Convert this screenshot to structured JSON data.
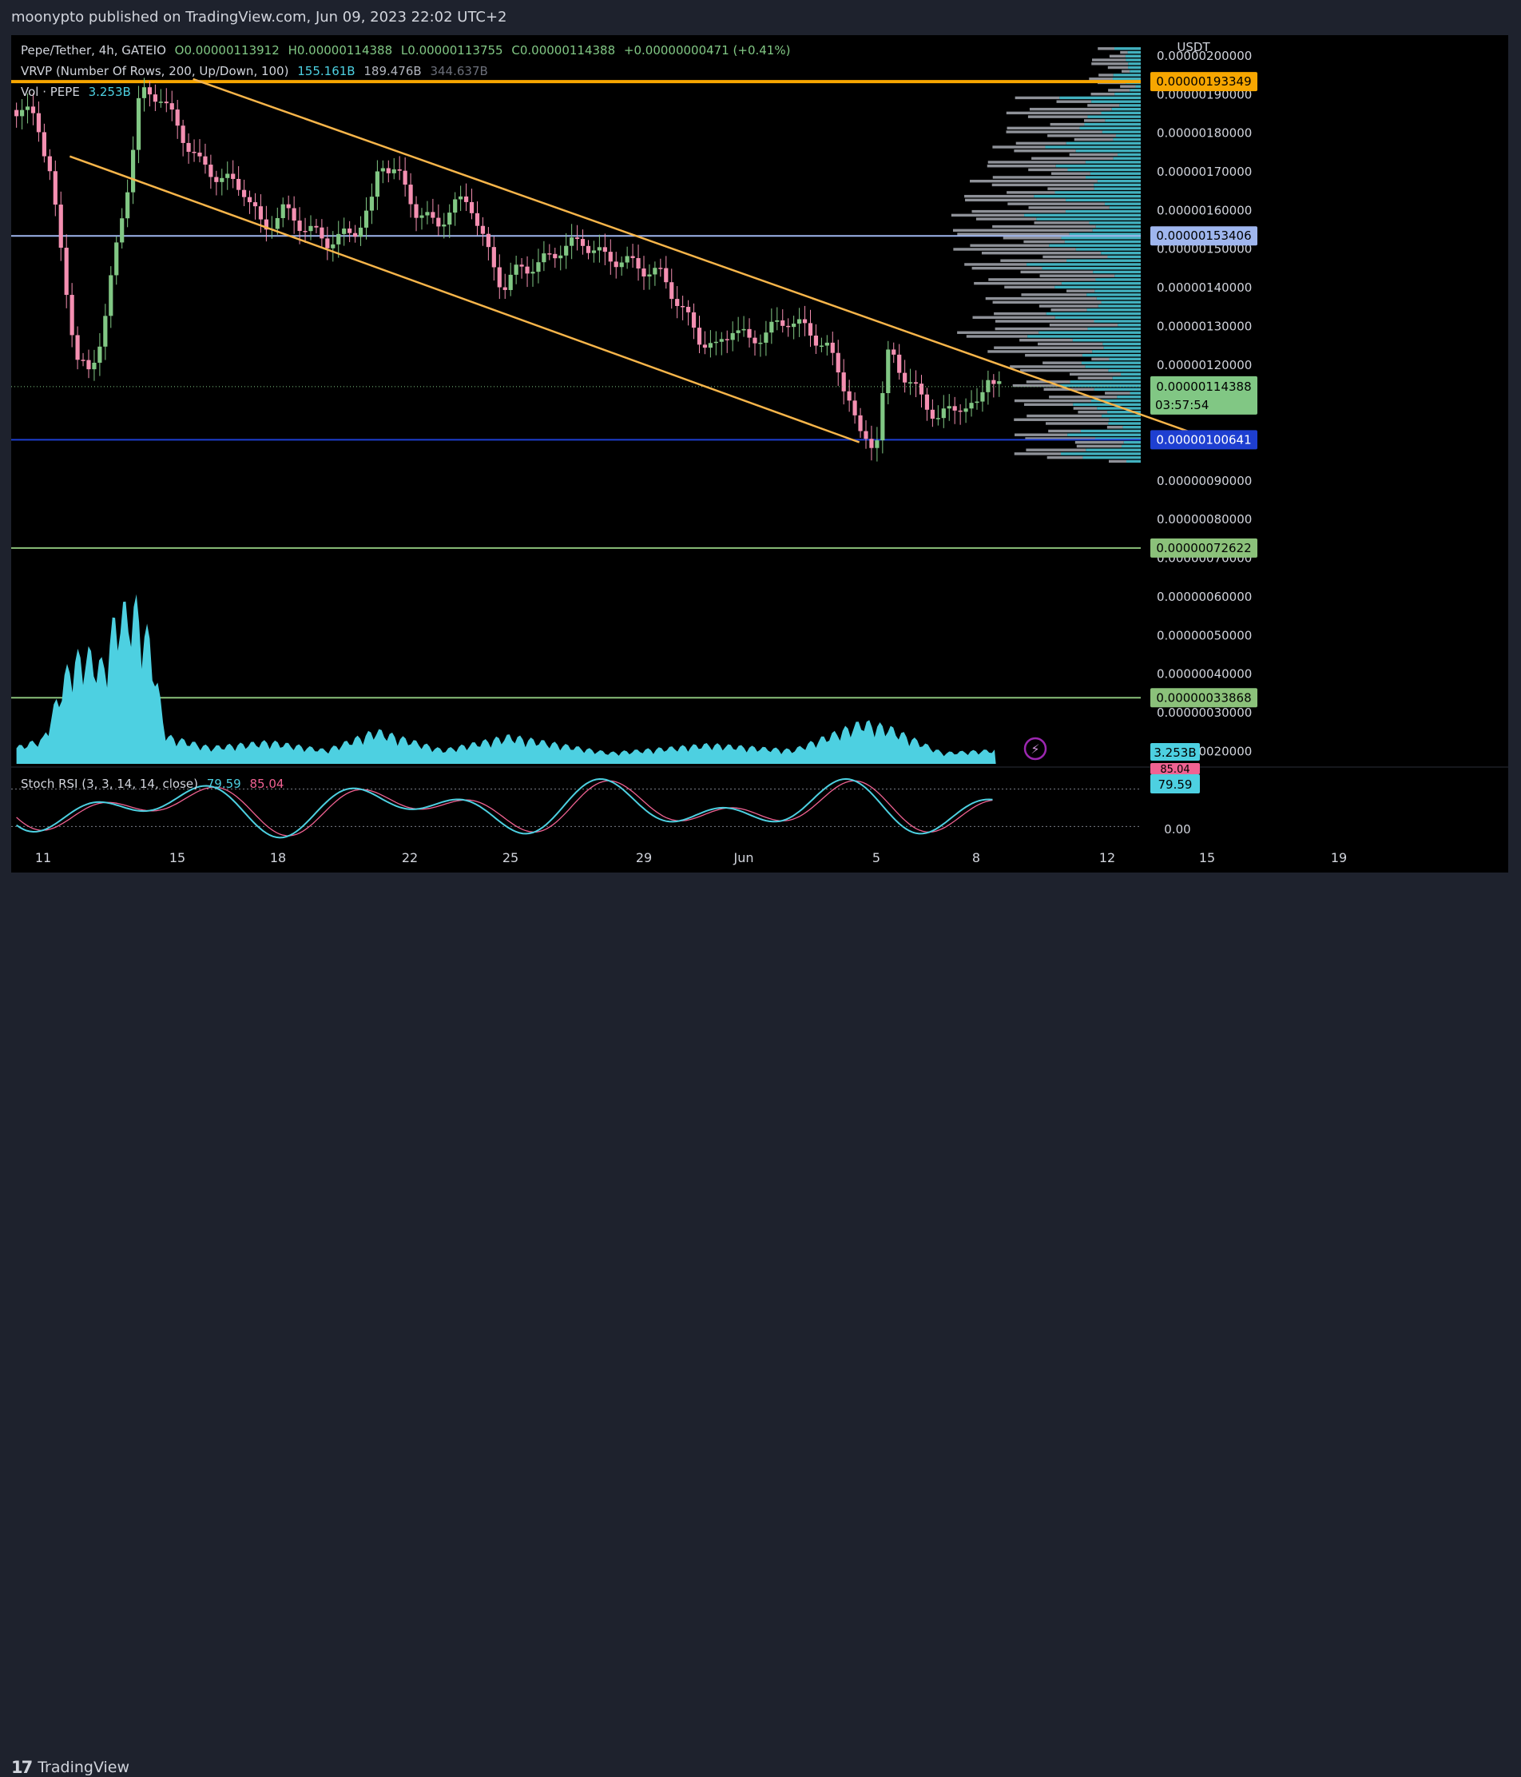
{
  "header": {
    "publisher_line": "moonypto published on TradingView.com, Jun 09, 2023 22:02 UTC+2"
  },
  "legend": {
    "symbol": "Pepe/Tether, 4h, GATEIO",
    "open": "O0.00000113912",
    "high": "H0.00000114388",
    "low": "L0.00000113755",
    "close": "C0.00000114388",
    "change": "+0.00000000471 (+0.41%)",
    "vrvp_label": "VRVP (Number Of Rows, 200, Up/Down, 100)",
    "vrvp_up": "155.161B",
    "vrvp_down": "189.476B",
    "vrvp_total": "344.637B",
    "vol_label": "Vol · PEPE",
    "vol_value": "3.253B",
    "stoch_label": "Stoch RSI (3, 3, 14, 14, close)",
    "stoch_k": "79.59",
    "stoch_d": "85.04"
  },
  "price_axis": {
    "currency": "USDT",
    "ticks": [
      "0.00000200000",
      "0.00000190000",
      "0.00000180000",
      "0.00000170000",
      "0.00000160000",
      "0.00000150000",
      "0.00000140000",
      "0.00000130000",
      "0.00000120000",
      "0.00000090000",
      "0.00000080000",
      "0.00000070000",
      "0.00000060000",
      "0.00000050000",
      "0.00000040000",
      "0.00000030000",
      "0.00000020000"
    ],
    "tick_values": [
      2.0,
      1.9,
      1.8,
      1.7,
      1.6,
      1.5,
      1.4,
      1.3,
      1.2,
      0.9,
      0.8,
      0.7,
      0.6,
      0.5,
      0.4,
      0.3,
      0.2
    ],
    "current_price": "0.00000114388",
    "countdown": "03:57:54",
    "volume_badge": "3.253B",
    "stoch_badge_k": "79.59",
    "stoch_badge_d": "85.04",
    "stoch_zero": "0.00"
  },
  "levels": [
    {
      "label": "0.00000193349",
      "value": 1.93349,
      "color": "#f7a600",
      "text_color": "#000000"
    },
    {
      "label": "0.00000153406",
      "value": 1.53406,
      "color": "#9fb6ee",
      "text_color": "#000000"
    },
    {
      "label": "0.00000100641",
      "value": 1.00641,
      "color": "#1e3fd1",
      "text_color": "#ffffff"
    },
    {
      "label": "0.00000072622",
      "value": 0.72622,
      "color": "#8bc17a",
      "text_color": "#000000"
    },
    {
      "label": "0.00000033868",
      "value": 0.33868,
      "color": "#8bc17a",
      "text_color": "#000000"
    }
  ],
  "time_axis": {
    "labels": [
      "11",
      "15",
      "18",
      "22",
      "25",
      "29",
      "Jun",
      "5",
      "8",
      "12",
      "15",
      "19"
    ]
  },
  "colors": {
    "up": "#81c784",
    "down": "#f48fb1",
    "trend": "#f7b54a",
    "volume": "#4dd0e1",
    "k_line": "#4dd0e1",
    "d_line": "#f06292"
  },
  "footer": {
    "brand": "TradingView"
  },
  "chart_data": {
    "type": "candlestick",
    "title": "Pepe/Tether, 4h, GATEIO",
    "ylabel": "USDT",
    "y_unit": "x 1e-6 USDT",
    "ylim": [
      0.1,
      2.12
    ],
    "x_range_days": [
      "May 10",
      "Jun 20"
    ],
    "trendlines": [
      {
        "name": "channel-upper",
        "from": {
          "day": 15.5,
          "price": 1.94
        },
        "to": {
          "day": 46.3,
          "price": 1.0
        }
      },
      {
        "name": "channel-lower",
        "from": {
          "day": 11.8,
          "price": 1.74
        },
        "to": {
          "day": 35.5,
          "price": 1.0
        }
      }
    ],
    "close_path": [
      {
        "day": 10.2,
        "price": 1.86
      },
      {
        "day": 10.8,
        "price": 1.84
      },
      {
        "day": 11.2,
        "price": 1.7
      },
      {
        "day": 11.6,
        "price": 1.45
      },
      {
        "day": 12.0,
        "price": 1.22
      },
      {
        "day": 12.4,
        "price": 1.17
      },
      {
        "day": 12.8,
        "price": 1.3
      },
      {
        "day": 13.3,
        "price": 1.55
      },
      {
        "day": 13.6,
        "price": 1.7
      },
      {
        "day": 13.9,
        "price": 1.9
      },
      {
        "day": 14.5,
        "price": 1.9
      },
      {
        "day": 15.0,
        "price": 1.82
      },
      {
        "day": 15.7,
        "price": 1.72
      },
      {
        "day": 16.4,
        "price": 1.68
      },
      {
        "day": 17.0,
        "price": 1.66
      },
      {
        "day": 17.6,
        "price": 1.55
      },
      {
        "day": 18.2,
        "price": 1.6
      },
      {
        "day": 18.8,
        "price": 1.56
      },
      {
        "day": 19.5,
        "price": 1.52
      },
      {
        "day": 20.3,
        "price": 1.54
      },
      {
        "day": 20.9,
        "price": 1.62
      },
      {
        "day": 21.1,
        "price": 1.73
      },
      {
        "day": 21.6,
        "price": 1.7
      },
      {
        "day": 22.2,
        "price": 1.6
      },
      {
        "day": 22.8,
        "price": 1.56
      },
      {
        "day": 23.3,
        "price": 1.61
      },
      {
        "day": 23.8,
        "price": 1.63
      },
      {
        "day": 24.3,
        "price": 1.5
      },
      {
        "day": 24.8,
        "price": 1.4
      },
      {
        "day": 25.3,
        "price": 1.45
      },
      {
        "day": 25.9,
        "price": 1.46
      },
      {
        "day": 26.5,
        "price": 1.5
      },
      {
        "day": 27.2,
        "price": 1.52
      },
      {
        "day": 27.8,
        "price": 1.48
      },
      {
        "day": 28.4,
        "price": 1.47
      },
      {
        "day": 29.0,
        "price": 1.45
      },
      {
        "day": 29.6,
        "price": 1.43
      },
      {
        "day": 30.2,
        "price": 1.34
      },
      {
        "day": 30.7,
        "price": 1.27
      },
      {
        "day": 31.2,
        "price": 1.24
      },
      {
        "day": 31.7,
        "price": 1.3
      },
      {
        "day": 32.2,
        "price": 1.26
      },
      {
        "day": 32.8,
        "price": 1.29
      },
      {
        "day": 33.4,
        "price": 1.32
      },
      {
        "day": 33.9,
        "price": 1.29
      },
      {
        "day": 34.5,
        "price": 1.25
      },
      {
        "day": 35.2,
        "price": 1.12
      },
      {
        "day": 35.5,
        "price": 1.01
      },
      {
        "day": 36.0,
        "price": 1.0
      },
      {
        "day": 36.4,
        "price": 1.24
      },
      {
        "day": 36.8,
        "price": 1.18
      },
      {
        "day": 37.3,
        "price": 1.12
      },
      {
        "day": 37.9,
        "price": 1.06
      },
      {
        "day": 38.5,
        "price": 1.1
      },
      {
        "day": 39.0,
        "price": 1.08
      },
      {
        "day": 39.4,
        "price": 1.19
      },
      {
        "day": 39.6,
        "price": 1.14388
      }
    ],
    "volume_path": [
      {
        "day": 10.2,
        "vol": 0.6
      },
      {
        "day": 11.0,
        "vol": 0.9
      },
      {
        "day": 11.8,
        "vol": 3.6
      },
      {
        "day": 12.3,
        "vol": 4.0
      },
      {
        "day": 12.8,
        "vol": 3.5
      },
      {
        "day": 13.2,
        "vol": 5.4
      },
      {
        "day": 13.8,
        "vol": 5.6
      },
      {
        "day": 14.2,
        "vol": 4.4
      },
      {
        "day": 14.7,
        "vol": 1.0
      },
      {
        "day": 16.0,
        "vol": 0.6
      },
      {
        "day": 17.8,
        "vol": 0.8
      },
      {
        "day": 19.5,
        "vol": 0.5
      },
      {
        "day": 21.0,
        "vol": 1.2
      },
      {
        "day": 23.0,
        "vol": 0.5
      },
      {
        "day": 25.0,
        "vol": 1.0
      },
      {
        "day": 28.0,
        "vol": 0.4
      },
      {
        "day": 31.0,
        "vol": 0.7
      },
      {
        "day": 33.5,
        "vol": 0.5
      },
      {
        "day": 35.6,
        "vol": 1.5
      },
      {
        "day": 36.4,
        "vol": 1.3
      },
      {
        "day": 38.0,
        "vol": 0.4
      },
      {
        "day": 39.6,
        "vol": 0.5
      }
    ],
    "stoch_rsi": {
      "k_last": 79.59,
      "d_last": 85.04,
      "upper_band": 80,
      "lower_band": 20
    }
  }
}
